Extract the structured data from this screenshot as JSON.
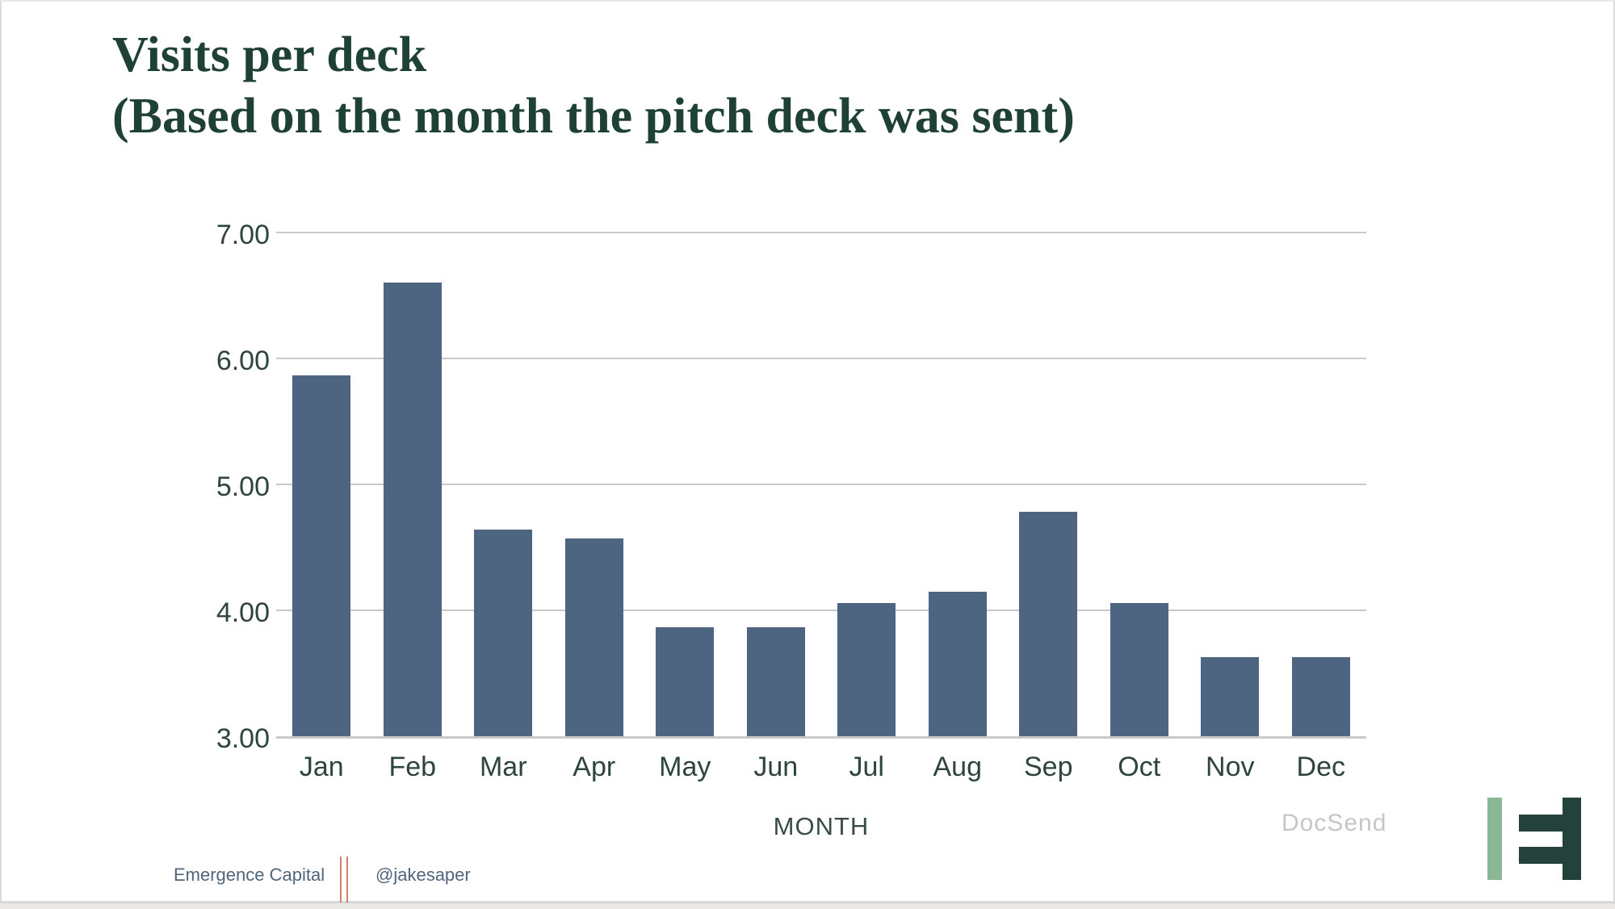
{
  "page": {
    "title_line1": "Visits per deck",
    "title_line2": "(Based on the month the pitch deck was sent)"
  },
  "chart_data": {
    "type": "bar",
    "title": "Visits per deck (Based on the month the pitch deck was sent)",
    "categories": [
      "Jan",
      "Feb",
      "Mar",
      "Apr",
      "May",
      "Jun",
      "Jul",
      "Aug",
      "Sep",
      "Oct",
      "Nov",
      "Dec"
    ],
    "values": [
      5.88,
      6.62,
      4.65,
      4.58,
      3.87,
      3.87,
      4.06,
      4.15,
      4.79,
      4.06,
      3.63,
      3.63
    ],
    "xlabel": "MONTH",
    "ylabel": "",
    "ylim": [
      3.0,
      7.0
    ],
    "yticks": [
      3.0,
      4.0,
      5.0,
      6.0,
      7.0
    ],
    "ytick_labels": [
      "3.00",
      "4.00",
      "5.00",
      "6.00",
      "7.00"
    ],
    "grid": true,
    "legend": false,
    "bar_color": "#4d6580"
  },
  "watermark": {
    "label": "DocSend"
  },
  "footer": {
    "company": "Emergence Capital",
    "handle": "@jakesaper"
  },
  "logo": {
    "name": "emergence-capital-logo"
  },
  "colors": {
    "title": "#1f4037",
    "bar": "#4d6580",
    "grid": "#c9c9c9",
    "axis_text": "#2e443c",
    "watermark": "#c6c6c6",
    "footer_text": "#51657c",
    "divider": "#c8826d",
    "logo_light": "#8cb795",
    "logo_dark": "#24423b"
  }
}
